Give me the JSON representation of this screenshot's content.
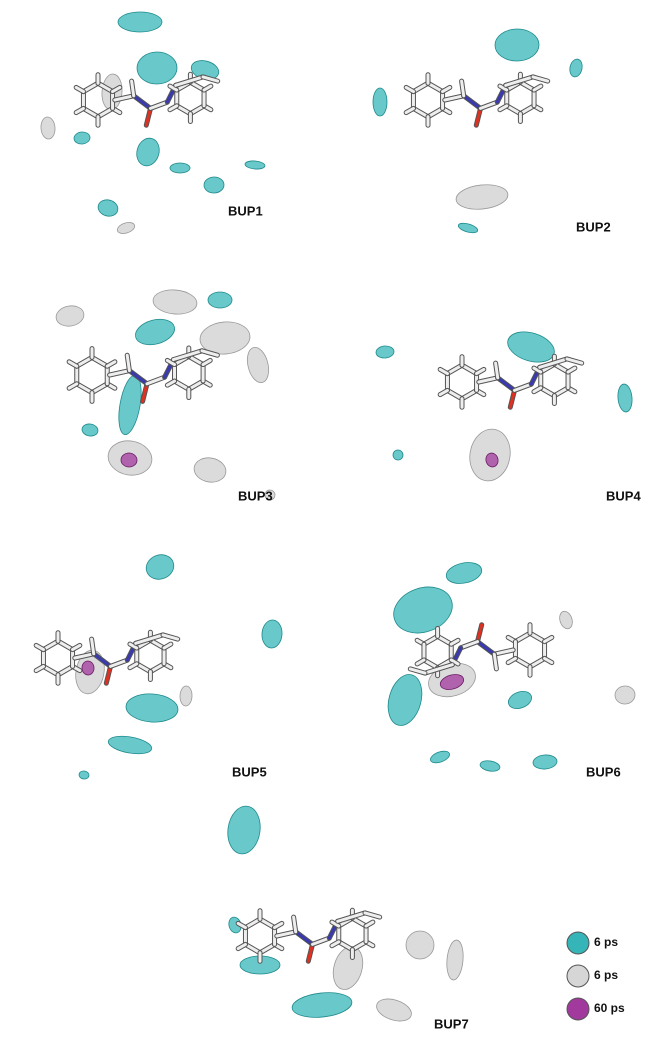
{
  "panels": [
    {
      "label": "BUP1"
    },
    {
      "label": "BUP2"
    },
    {
      "label": "BUP3"
    },
    {
      "label": "BUP4"
    },
    {
      "label": "BUP5"
    },
    {
      "label": "BUP6"
    },
    {
      "label": "BUP7"
    }
  ],
  "legend": [
    {
      "label": "6 ps",
      "color": "#35b5b8"
    },
    {
      "label": "6 ps",
      "color": "#d6d6d6"
    },
    {
      "label": "60 ps",
      "color": "#a23a9e"
    }
  ]
}
